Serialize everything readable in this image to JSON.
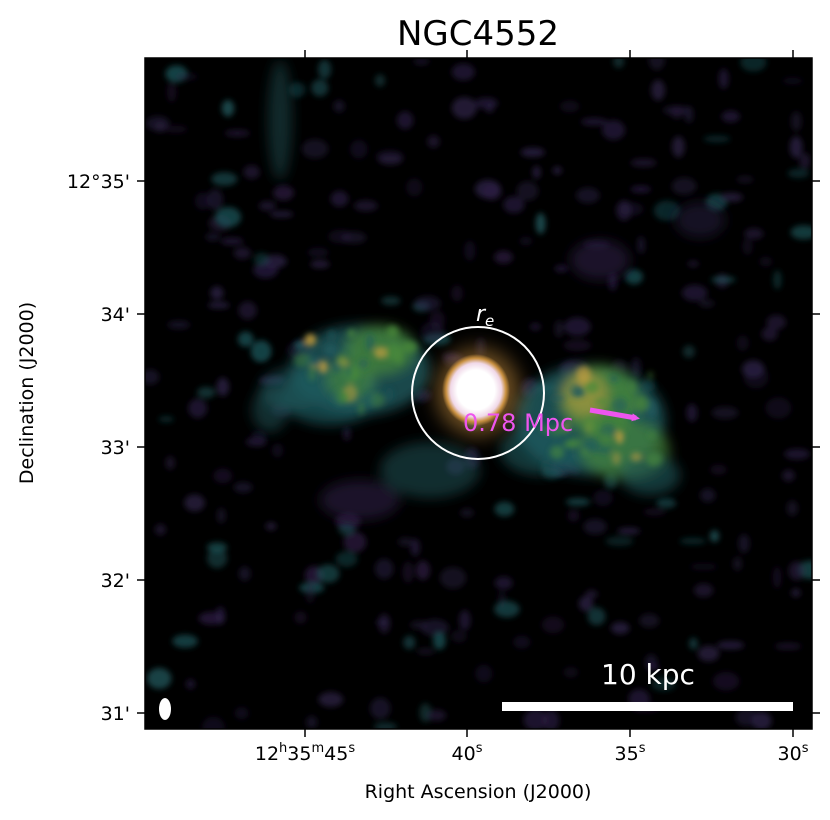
{
  "chart_data": {
    "type": "heatmap",
    "title": "NGC4552",
    "xlabel": "Right Ascension (J2000)",
    "ylabel": "Declination (J2000)",
    "x_ticks": [
      {
        "h": "12",
        "m": "35",
        "s": "45",
        "label": "12h35m45s"
      },
      {
        "s": "40",
        "label": "40s"
      },
      {
        "s": "35",
        "label": "35s"
      },
      {
        "s": "30",
        "label": "30s"
      }
    ],
    "y_ticks": [
      "12°35'",
      "34'",
      "33'",
      "32'",
      "31'"
    ],
    "colormap": "cubehelix-like (black → purple → teal → green → yellow → white)",
    "colors": {
      "background": "#000000",
      "faint": "#2c1f45",
      "mid": "#1f5a5e",
      "bright": "#4a8a3a",
      "peak": "#c8a040",
      "core": "#ffffff",
      "annotation": "#ee55ee"
    },
    "annotations": {
      "effective_radius_label": "r",
      "effective_radius_subscript": "e",
      "distance_label": "0.78 Mpc",
      "scalebar_label": "10 kpc"
    },
    "grid": false,
    "legend": "none"
  }
}
